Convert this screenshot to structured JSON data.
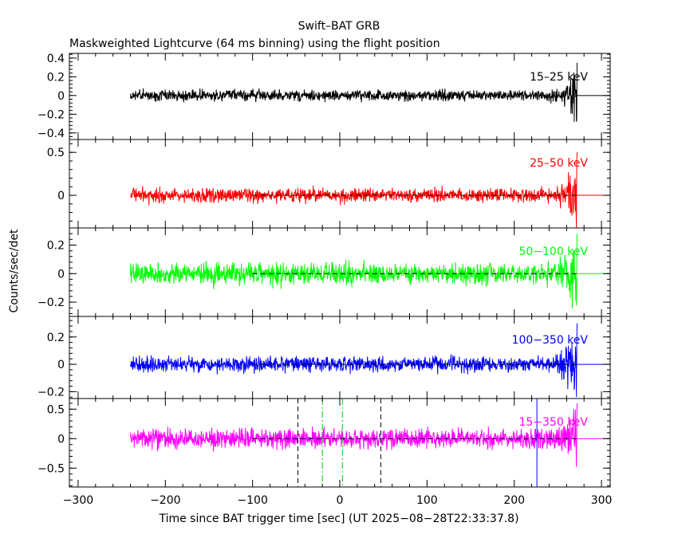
{
  "title": "Swift–BAT GRB",
  "subtitle": "Maskweighted Lightcurve (64 ms binning) using the flight position",
  "ylabel": "Counts/sec/det",
  "xlabel": "Time since BAT trigger time [sec] (UT 2025−08−28T22:33:37.8)",
  "chart_data": {
    "type": "line",
    "shared_x": {
      "range": [
        -310,
        310
      ],
      "ticks": [
        -300,
        -200,
        -100,
        0,
        100,
        200,
        300
      ],
      "tick_labels": [
        "−300",
        "−200",
        "−100",
        "0",
        "100",
        "200",
        "300"
      ],
      "data_start": -240,
      "data_end": 272
    },
    "panels": [
      {
        "name": "15-25",
        "label": "15–25 keV",
        "color": "#000000",
        "ylim": [
          -0.47,
          0.45
        ],
        "yticks": [
          -0.4,
          -0.2,
          0,
          0.2,
          0.4
        ],
        "ytick_labels": [
          "−0.4",
          "−0.2",
          "0",
          "0.2",
          "0.4"
        ],
        "noise_amp": 0.032,
        "spike_amp": 0.35
      },
      {
        "name": "25-50",
        "label": "25–50 keV",
        "color": "#ff0000",
        "ylim": [
          -0.38,
          0.65
        ],
        "yticks": [
          0,
          0.5
        ],
        "ytick_labels": [
          "0",
          "0.5"
        ],
        "noise_amp": 0.045,
        "spike_amp": 0.5
      },
      {
        "name": "50-100",
        "label": "50−100 keV",
        "color": "#00ff00",
        "ylim": [
          -0.3,
          0.32
        ],
        "yticks": [
          -0.2,
          0,
          0.2
        ],
        "ytick_labels": [
          "−0.2",
          "0",
          "0.2"
        ],
        "noise_amp": 0.04,
        "spike_amp": 0.28
      },
      {
        "name": "100-350",
        "label": "100−350 keV",
        "color": "#0000ff",
        "ylim": [
          -0.25,
          0.35
        ],
        "yticks": [
          -0.2,
          0,
          0.2
        ],
        "ytick_labels": [
          "−0.2",
          "0",
          "0.2"
        ],
        "noise_amp": 0.03,
        "spike_amp": 0.3
      },
      {
        "name": "15-350",
        "label": "15−350 keV",
        "color": "#ff00ff",
        "ylim": [
          -0.82,
          0.68
        ],
        "yticks": [
          -0.5,
          0,
          0.5
        ],
        "ytick_labels": [
          "−0.5",
          "0",
          "0.5"
        ],
        "noise_amp": 0.09,
        "spike_amp": 0.6
      }
    ],
    "zero_line_start": -100,
    "markers": [
      {
        "name": "dash-marker-left",
        "x": -48,
        "style": "dash",
        "color": "#000000"
      },
      {
        "name": "dashdot-marker-left",
        "x": -20,
        "style": "dashdot",
        "color": "#00cc00"
      },
      {
        "name": "dashdot-marker-right",
        "x": 3,
        "style": "dashdot",
        "color": "#00cc00"
      },
      {
        "name": "dash-marker-right",
        "x": 47,
        "style": "dash",
        "color": "#000000"
      },
      {
        "name": "blue-marker",
        "x": 226,
        "style": "solid",
        "color": "#0000ff"
      }
    ]
  }
}
